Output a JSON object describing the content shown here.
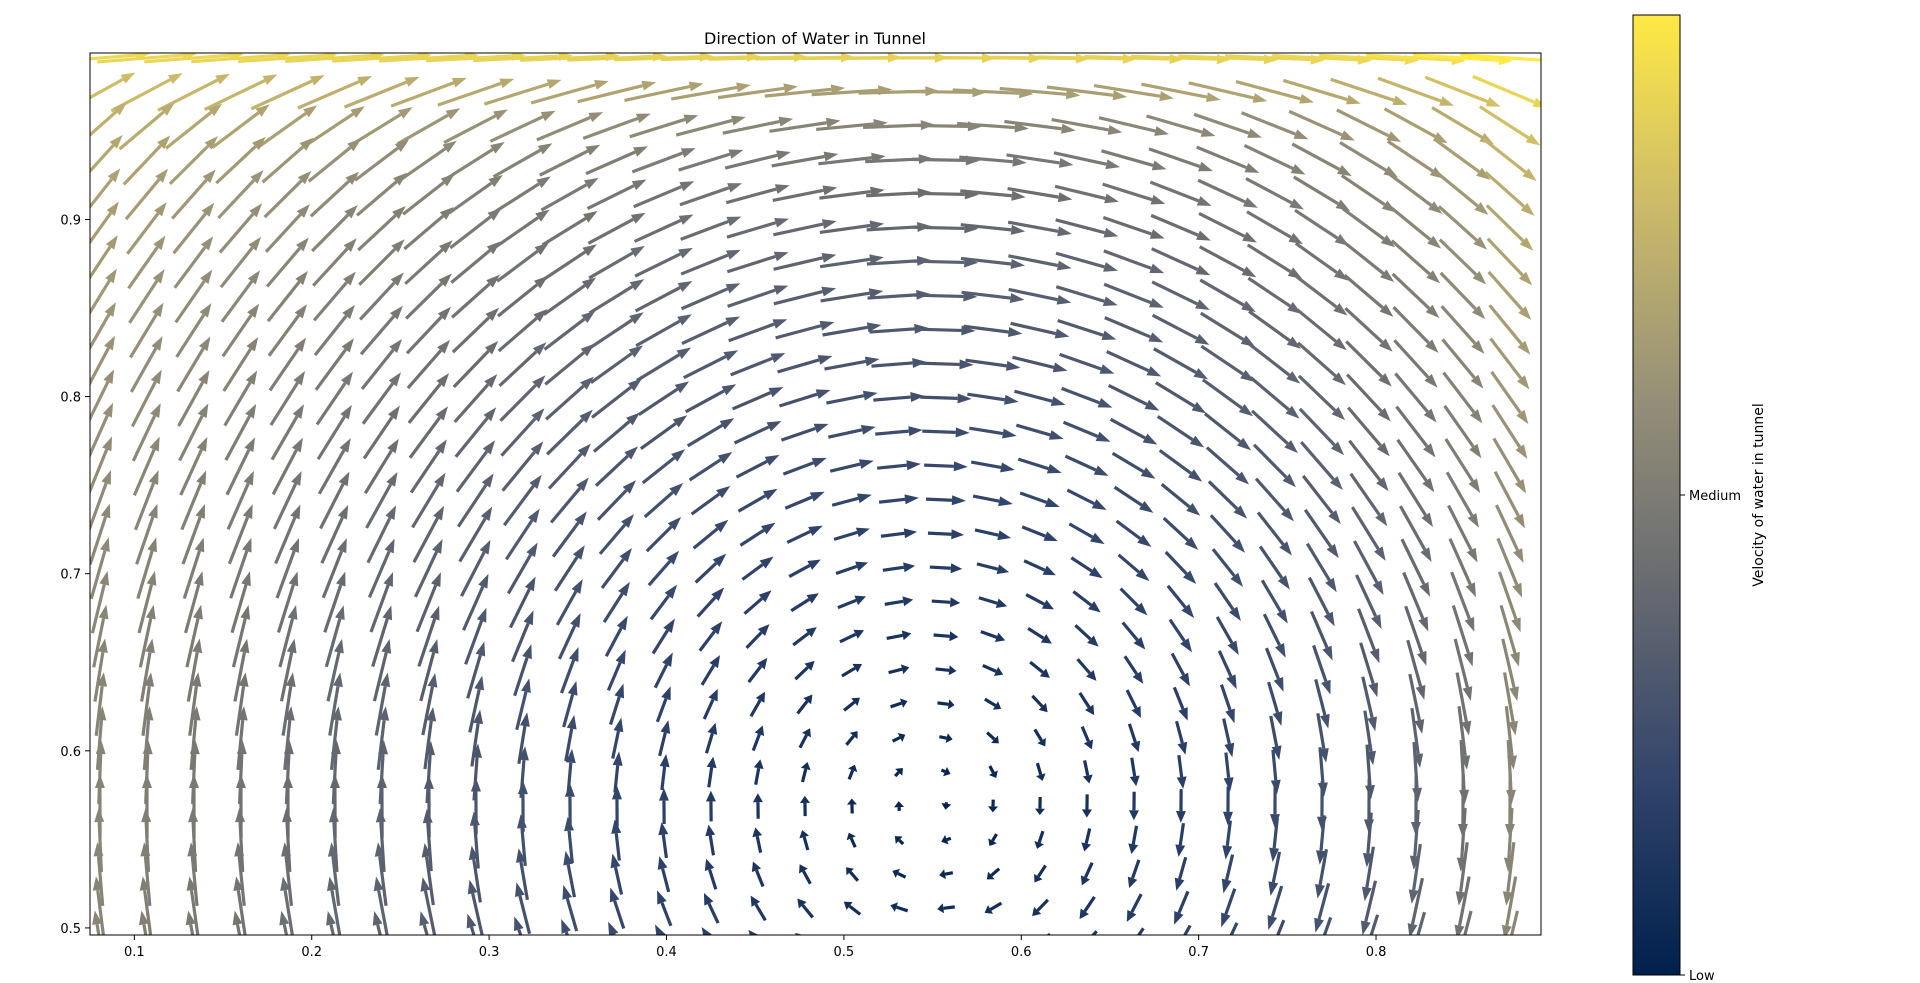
{
  "chart_data": {
    "type": "quiver",
    "title": "Direction of Water in Tunnel",
    "xlabel": "",
    "ylabel": "",
    "xlim": [
      0.075,
      0.893
    ],
    "ylim": [
      0.496,
      0.994
    ],
    "x_ticks": [
      0.1,
      0.2,
      0.3,
      0.4,
      0.5,
      0.6,
      0.7,
      0.8
    ],
    "x_tick_labels": [
      "0.1",
      "0.2",
      "0.3",
      "0.4",
      "0.5",
      "0.6",
      "0.7",
      "0.8"
    ],
    "y_ticks": [
      0.5,
      0.6,
      0.7,
      0.8,
      0.9
    ],
    "y_tick_labels": [
      "0.5",
      "0.6",
      "0.7",
      "0.8",
      "0.9"
    ],
    "vortex_center": {
      "x": 0.55,
      "y": 0.57
    },
    "grid": false,
    "colormap": "cividis",
    "colormap_stops": [
      "#00204c",
      "#31446b",
      "#666970",
      "#958f78",
      "#cbba69",
      "#ffe945"
    ],
    "colorbar": {
      "label": "Velocity of water in tunnel",
      "tick_labels": [
        "Low",
        "Medium"
      ],
      "tick_positions": [
        0.0,
        0.5
      ]
    }
  }
}
